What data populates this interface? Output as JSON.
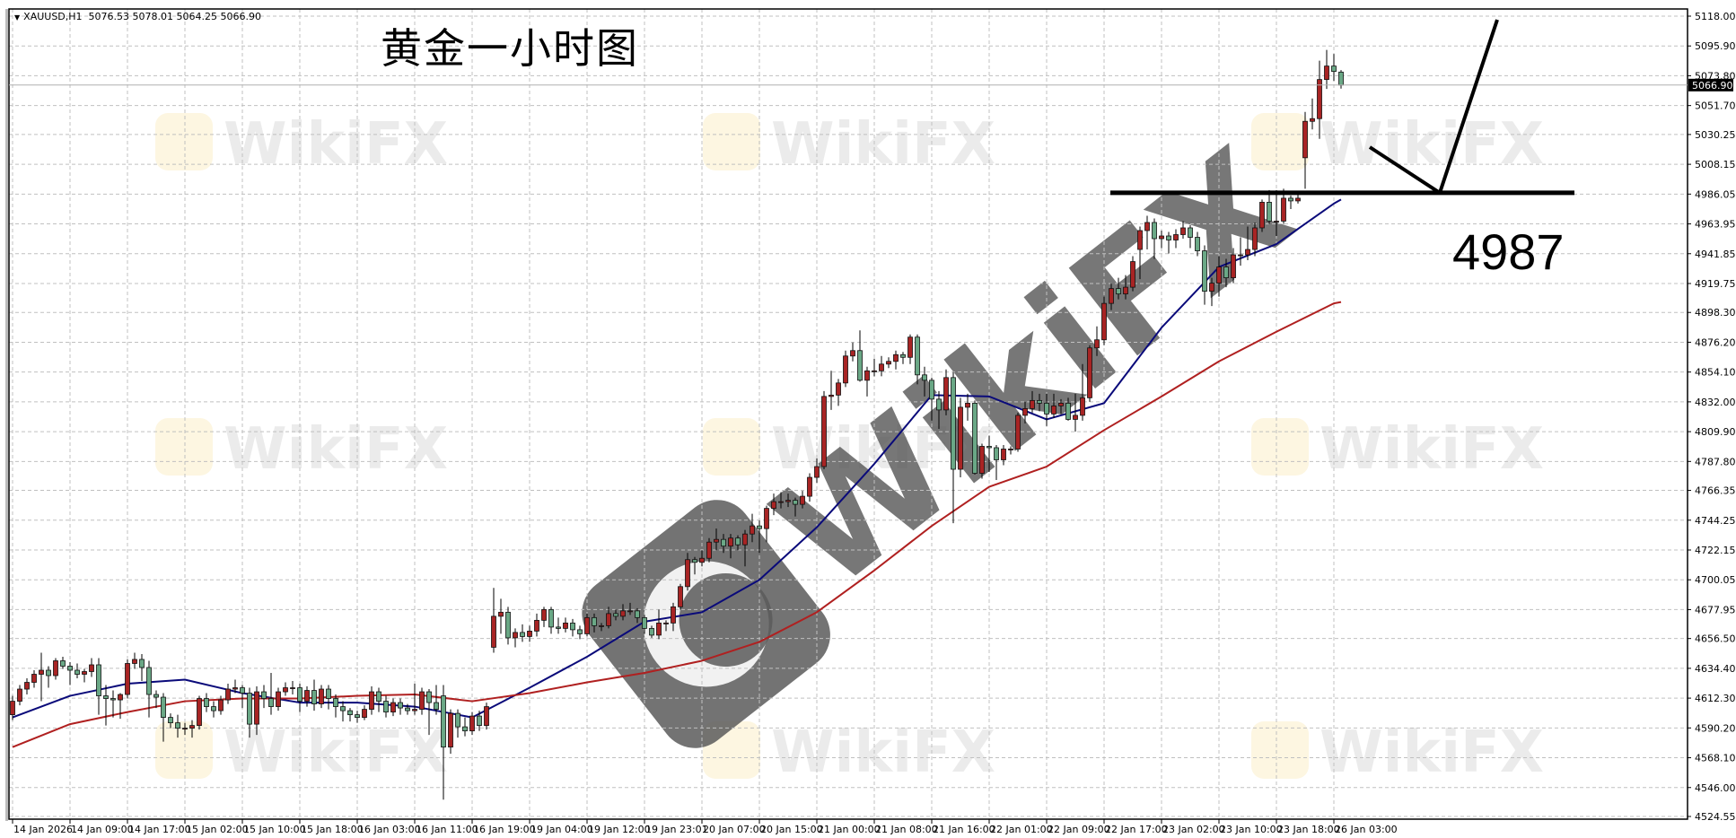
{
  "header": {
    "symbol": "XAUUSD,H1",
    "ohlc_text": "5076.53 5078.01 5064.25 5066.90"
  },
  "annotation": {
    "title": "黄金一小时图",
    "level_label": "4987",
    "level": 4987
  },
  "watermark": {
    "text": "WikiFX"
  },
  "colors": {
    "bull": "#a82424",
    "bear": "#6aa886",
    "ma_fast": "#0a0a7a",
    "ma_slow": "#b02020",
    "grid": "#c0c0c0",
    "level_line": "#000000"
  },
  "chart_data": {
    "type": "candlestick",
    "symbol": "XAUUSD",
    "timeframe": "H1",
    "current_price": "5066.90",
    "ylim": [
      4524.55,
      5118.0
    ],
    "y_ticks": [
      "5118.00",
      "5095.90",
      "5073.80",
      "5051.70",
      "5030.25",
      "5008.15",
      "4986.05",
      "4963.95",
      "4941.85",
      "4919.75",
      "4898.30",
      "4876.20",
      "4854.10",
      "4832.00",
      "4809.90",
      "4787.80",
      "4766.35",
      "4744.25",
      "4722.15",
      "4700.05",
      "4677.95",
      "4656.50",
      "4634.40",
      "4612.30",
      "4590.20",
      "4568.10",
      "4546.00",
      "4524.55"
    ],
    "x_ticks": [
      "14 Jan 2026",
      "14 Jan 09:00",
      "14 Jan 17:00",
      "15 Jan 02:00",
      "15 Jan 10:00",
      "15 Jan 18:00",
      "16 Jan 03:00",
      "16 Jan 11:00",
      "16 Jan 19:00",
      "19 Jan 04:00",
      "19 Jan 12:00",
      "19 Jan 23:01",
      "20 Jan 07:00",
      "20 Jan 15:00",
      "21 Jan 00:00",
      "21 Jan 08:00",
      "21 Jan 16:00",
      "22 Jan 01:00",
      "22 Jan 09:00",
      "22 Jan 17:00",
      "23 Jan 02:00",
      "23 Jan 10:00",
      "23 Jan 18:00",
      "26 Jan 03:00"
    ],
    "bars_per_tick": 8,
    "grid": true,
    "ohlc": [
      [
        4600,
        4614,
        4596,
        4610
      ],
      [
        4610,
        4622,
        4607,
        4619
      ],
      [
        4619,
        4627,
        4615,
        4624
      ],
      [
        4624,
        4633,
        4620,
        4630
      ],
      [
        4630,
        4646,
        4610,
        4633
      ],
      [
        4633,
        4636,
        4620,
        4629
      ],
      [
        4629,
        4642,
        4626,
        4640
      ],
      [
        4640,
        4643,
        4634,
        4636
      ],
      [
        4636,
        4639,
        4622,
        4633
      ],
      [
        4633,
        4638,
        4627,
        4630
      ],
      [
        4630,
        4634,
        4624,
        4632
      ],
      [
        4632,
        4642,
        4628,
        4637
      ],
      [
        4637,
        4642,
        4600,
        4614
      ],
      [
        4614,
        4622,
        4592,
        4612
      ],
      [
        4612,
        4618,
        4598,
        4611
      ],
      [
        4611,
        4616,
        4597,
        4615
      ],
      [
        4615,
        4641,
        4612,
        4638
      ],
      [
        4638,
        4646,
        4634,
        4641
      ],
      [
        4641,
        4645,
        4625,
        4635
      ],
      [
        4635,
        4640,
        4598,
        4615
      ],
      [
        4615,
        4618,
        4605,
        4613
      ],
      [
        4613,
        4616,
        4580,
        4598
      ],
      [
        4598,
        4601,
        4590,
        4594
      ],
      [
        4594,
        4600,
        4583,
        4590
      ],
      [
        4590,
        4594,
        4585,
        4590
      ],
      [
        4590,
        4596,
        4583,
        4592
      ],
      [
        4592,
        4614,
        4589,
        4612
      ],
      [
        4612,
        4616,
        4602,
        4606
      ],
      [
        4606,
        4610,
        4598,
        4603
      ],
      [
        4603,
        4614,
        4600,
        4611
      ],
      [
        4611,
        4623,
        4608,
        4619
      ],
      [
        4619,
        4626,
        4616,
        4620
      ],
      [
        4620,
        4622,
        4605,
        4616
      ],
      [
        4616,
        4620,
        4583,
        4593
      ],
      [
        4593,
        4621,
        4585,
        4617
      ],
      [
        4617,
        4622,
        4605,
        4612
      ],
      [
        4612,
        4631,
        4600,
        4606
      ],
      [
        4606,
        4620,
        4603,
        4617
      ],
      [
        4617,
        4624,
        4614,
        4620
      ],
      [
        4620,
        4625,
        4615,
        4620
      ],
      [
        4620,
        4623,
        4602,
        4610
      ],
      [
        4610,
        4621,
        4606,
        4618
      ],
      [
        4618,
        4626,
        4603,
        4608
      ],
      [
        4608,
        4622,
        4605,
        4619
      ],
      [
        4619,
        4622,
        4604,
        4612
      ],
      [
        4612,
        4615,
        4598,
        4606
      ],
      [
        4606,
        4610,
        4595,
        4603
      ],
      [
        4603,
        4605,
        4595,
        4600
      ],
      [
        4600,
        4603,
        4594,
        4598
      ],
      [
        4598,
        4607,
        4596,
        4604
      ],
      [
        4604,
        4621,
        4600,
        4617
      ],
      [
        4617,
        4620,
        4602,
        4610
      ],
      [
        4610,
        4614,
        4598,
        4602
      ],
      [
        4602,
        4612,
        4599,
        4609
      ],
      [
        4609,
        4612,
        4600,
        4605
      ],
      [
        4605,
        4608,
        4600,
        4603
      ],
      [
        4603,
        4623,
        4600,
        4604
      ],
      [
        4604,
        4620,
        4600,
        4617
      ],
      [
        4617,
        4619,
        4585,
        4609
      ],
      [
        4609,
        4622,
        4600,
        4604
      ],
      [
        4614,
        4622,
        4537,
        4576
      ],
      [
        4576,
        4604,
        4571,
        4601
      ],
      [
        4601,
        4604,
        4583,
        4591
      ],
      [
        4591,
        4598,
        4584,
        4588
      ],
      [
        4588,
        4602,
        4585,
        4599
      ],
      [
        4599,
        4603,
        4588,
        4592
      ],
      [
        4592,
        4609,
        4589,
        4606
      ],
      [
        4650,
        4694,
        4646,
        4673
      ],
      [
        4673,
        4686,
        4660,
        4676
      ],
      [
        4676,
        4680,
        4652,
        4657
      ],
      [
        4657,
        4664,
        4650,
        4661
      ],
      [
        4661,
        4667,
        4654,
        4658
      ],
      [
        4658,
        4666,
        4654,
        4662
      ],
      [
        4662,
        4675,
        4658,
        4670
      ],
      [
        4670,
        4680,
        4665,
        4678
      ],
      [
        4678,
        4680,
        4660,
        4665
      ],
      [
        4665,
        4672,
        4660,
        4664
      ],
      [
        4664,
        4672,
        4661,
        4668
      ],
      [
        4668,
        4671,
        4658,
        4663
      ],
      [
        4663,
        4666,
        4656,
        4660
      ],
      [
        4660,
        4675,
        4658,
        4672
      ],
      [
        4672,
        4675,
        4661,
        4666
      ],
      [
        4666,
        4668,
        4662,
        4666
      ],
      [
        4666,
        4680,
        4664,
        4675
      ],
      [
        4675,
        4678,
        4670,
        4673
      ],
      [
        4673,
        4682,
        4670,
        4677
      ],
      [
        4677,
        4683,
        4674,
        4677
      ],
      [
        4677,
        4679,
        4668,
        4672
      ],
      [
        4672,
        4674,
        4660,
        4664
      ],
      [
        4664,
        4666,
        4657,
        4659
      ],
      [
        4659,
        4678,
        4656,
        4668
      ],
      [
        4668,
        4670,
        4662,
        4668
      ],
      [
        4668,
        4683,
        4662,
        4680
      ],
      [
        4680,
        4697,
        4678,
        4695
      ],
      [
        4695,
        4720,
        4692,
        4715
      ],
      [
        4715,
        4717,
        4704,
        4713
      ],
      [
        4713,
        4722,
        4710,
        4716
      ],
      [
        4716,
        4731,
        4713,
        4728
      ],
      [
        4728,
        4738,
        4722,
        4730
      ],
      [
        4730,
        4734,
        4720,
        4725
      ],
      [
        4725,
        4734,
        4716,
        4731
      ],
      [
        4731,
        4733,
        4722,
        4726
      ],
      [
        4726,
        4737,
        4710,
        4734
      ],
      [
        4734,
        4749,
        4728,
        4740
      ],
      [
        4740,
        4744,
        4720,
        4738
      ],
      [
        4738,
        4755,
        4728,
        4753
      ],
      [
        4753,
        4764,
        4748,
        4758
      ],
      [
        4758,
        4765,
        4753,
        4758
      ],
      [
        4758,
        4764,
        4754,
        4759
      ],
      [
        4759,
        4761,
        4747,
        4756
      ],
      [
        4756,
        4766,
        4753,
        4762
      ],
      [
        4762,
        4779,
        4758,
        4776
      ],
      [
        4776,
        4790,
        4772,
        4784
      ],
      [
        4784,
        4840,
        4782,
        4836
      ],
      [
        4836,
        4855,
        4826,
        4837
      ],
      [
        4837,
        4849,
        4829,
        4846
      ],
      [
        4846,
        4870,
        4843,
        4866
      ],
      [
        4866,
        4876,
        4862,
        4870
      ],
      [
        4870,
        4885,
        4847,
        4848
      ],
      [
        4848,
        4858,
        4836,
        4855
      ],
      [
        4855,
        4864,
        4851,
        4855
      ],
      [
        4855,
        4866,
        4851,
        4860
      ],
      [
        4860,
        4865,
        4857,
        4862
      ],
      [
        4862,
        4870,
        4856,
        4867
      ],
      [
        4867,
        4869,
        4860,
        4865
      ],
      [
        4865,
        4882,
        4860,
        4880
      ],
      [
        4880,
        4882,
        4845,
        4852
      ],
      [
        4852,
        4858,
        4836,
        4848
      ],
      [
        4848,
        4850,
        4818,
        4834
      ],
      [
        4834,
        4840,
        4812,
        4826
      ],
      [
        4826,
        4856,
        4822,
        4850
      ],
      [
        4850,
        4854,
        4742,
        4782
      ],
      [
        4782,
        4835,
        4776,
        4828
      ],
      [
        4828,
        4838,
        4818,
        4831
      ],
      [
        4831,
        4833,
        4778,
        4779
      ],
      [
        4779,
        4801,
        4775,
        4799
      ],
      [
        4799,
        4807,
        4780,
        4798
      ],
      [
        4798,
        4800,
        4774,
        4789
      ],
      [
        4789,
        4800,
        4785,
        4797
      ],
      [
        4797,
        4799,
        4793,
        4797
      ],
      [
        4797,
        4824,
        4795,
        4822
      ],
      [
        4822,
        4832,
        4816,
        4827
      ],
      [
        4827,
        4840,
        4824,
        4833
      ],
      [
        4833,
        4838,
        4825,
        4831
      ],
      [
        4831,
        4838,
        4814,
        4823
      ],
      [
        4823,
        4838,
        4820,
        4829
      ],
      [
        4829,
        4834,
        4823,
        4831
      ],
      [
        4831,
        4835,
        4818,
        4819
      ],
      [
        4819,
        4838,
        4810,
        4822
      ],
      [
        4822,
        4860,
        4818,
        4835
      ],
      [
        4835,
        4874,
        4832,
        4872
      ],
      [
        4872,
        4888,
        4866,
        4878
      ],
      [
        4878,
        4910,
        4874,
        4905
      ],
      [
        4905,
        4920,
        4900,
        4916
      ],
      [
        4916,
        4924,
        4908,
        4912
      ],
      [
        4912,
        4926,
        4908,
        4917
      ],
      [
        4917,
        4940,
        4914,
        4936
      ],
      [
        4945,
        4962,
        4923,
        4959
      ],
      [
        4959,
        4970,
        4945,
        4965
      ],
      [
        4965,
        4968,
        4938,
        4953
      ],
      [
        4953,
        4959,
        4946,
        4955
      ],
      [
        4955,
        4958,
        4942,
        4952
      ],
      [
        4952,
        4960,
        4946,
        4956
      ],
      [
        4956,
        4966,
        4953,
        4961
      ],
      [
        4961,
        4963,
        4946,
        4954
      ],
      [
        4954,
        4958,
        4940,
        4944
      ],
      [
        4944,
        4948,
        4904,
        4914
      ],
      [
        4914,
        4924,
        4903,
        4920
      ],
      [
        4920,
        4940,
        4910,
        4932
      ],
      [
        4932,
        4938,
        4917,
        4924
      ],
      [
        4924,
        4946,
        4920,
        4941
      ],
      [
        4941,
        4954,
        4933,
        4941
      ],
      [
        4941,
        4962,
        4937,
        4945
      ],
      [
        4945,
        4965,
        4940,
        4961
      ],
      [
        4961,
        4982,
        4958,
        4980
      ],
      [
        4980,
        4989,
        4964,
        4966
      ],
      [
        4966,
        4989,
        4955,
        4966
      ],
      [
        4966,
        4990,
        4964,
        4983
      ],
      [
        4983,
        4985,
        4975,
        4981
      ],
      [
        4981,
        4986,
        4979,
        4983
      ],
      [
        5013,
        5047,
        4990,
        5040
      ],
      [
        5040,
        5057,
        5034,
        5042
      ],
      [
        5042,
        5085,
        5027,
        5071
      ],
      [
        5071,
        5093,
        5064,
        5081
      ],
      [
        5081,
        5090,
        5070,
        5077
      ],
      [
        5076.53,
        5078.01,
        5064.25,
        5066.9
      ]
    ],
    "moving_averages": [
      {
        "color": "#0a0a7a",
        "values_at_x_ticks": [
          4598,
          4614,
          4623,
          4626,
          4616,
          4609,
          4609,
          4606,
          4598,
          4620,
          4643,
          4669,
          4676,
          4700,
          4739,
          4786,
          4837,
          4836,
          4819,
          4831,
          4887,
          4932,
          4949,
          4979
        ],
        "last": 4982
      },
      {
        "color": "#b02020",
        "values_at_x_ticks": [
          4576,
          4593,
          4602,
          4610,
          4612,
          4612,
          4614,
          4615,
          4610,
          4616,
          4624,
          4631,
          4640,
          4654,
          4676,
          4707,
          4740,
          4769,
          4784,
          4811,
          4836,
          4862,
          4884,
          4905
        ],
        "last": 4906
      }
    ]
  }
}
